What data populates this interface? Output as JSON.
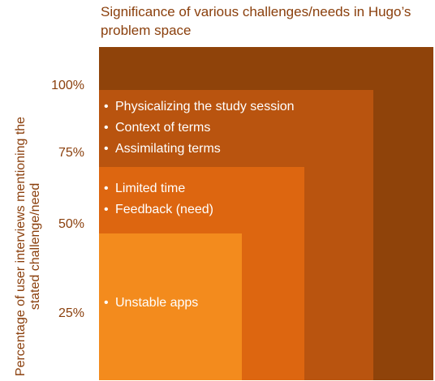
{
  "chart_data": {
    "type": "nested-area",
    "title": "Significance of various challenges/needs in Hugo’s problem space",
    "ylabel": "Percentage of user interviews mentioning the stated challenge/need",
    "yticks": [
      "100%",
      "75%",
      "50%",
      "25%"
    ],
    "levels": [
      {
        "value": 100,
        "color": "#8f430a",
        "items": []
      },
      {
        "value": 87,
        "color": "#b9540f",
        "items": [
          "Physicalizing the study session",
          "Context of terms",
          "Assimilating terms"
        ]
      },
      {
        "value": 64,
        "color": "#dd6610",
        "items": [
          "Limited time",
          "Feedback (need)"
        ]
      },
      {
        "value": 44,
        "color": "#f38b1d",
        "items": [
          "Unstable apps"
        ]
      }
    ]
  }
}
